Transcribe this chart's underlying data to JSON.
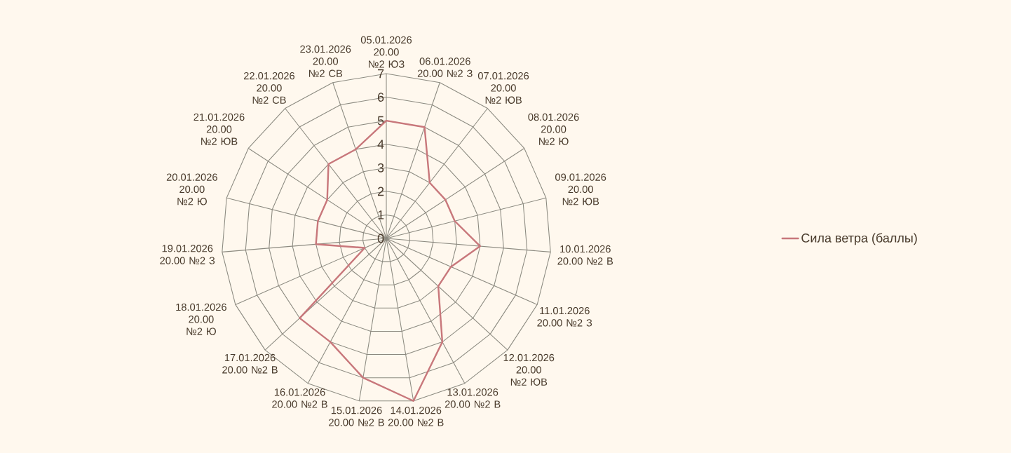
{
  "chart_data": {
    "type": "radar",
    "categories": [
      "05.01.2026 20.00 №2 ЮЗ",
      "06.01.2026 20.00 №2 З",
      "07.01.2026 20.00 №2 ЮВ",
      "08.01.2026 20.00 №2 Ю",
      "09.01.2026 20.00 №2 ЮВ",
      "10.01.2026 20.00 №2 В",
      "11.01.2026 20.00 №2 З",
      "12.01.2026 20.00 №2 ЮВ",
      "13.01.2026 20.00 №2 В",
      "14.01.2026 20.00 №2 В",
      "15.01.2026 20.00 №2 В",
      "16.01.2026 20.00 №2 В",
      "17.01.2026 20.00 №2 В",
      "18.01.2026 20.00 №2 Ю",
      "19.01.2026 20.00 №2 З",
      "20.01.2026 20.00 №2 Ю",
      "21.01.2026 20.00 №2 ЮВ",
      "22.01.2026 20.00 №2 СВ",
      "23.01.2026 20.00 №2 СВ"
    ],
    "series": [
      {
        "name": "Сила ветра (баллы)",
        "color": "#c8777b",
        "values": [
          5,
          5,
          3,
          3,
          3,
          4,
          3,
          3,
          5,
          7,
          6,
          5,
          5,
          1,
          3,
          3,
          3,
          4,
          4
        ]
      }
    ],
    "ylim": [
      0,
      7
    ],
    "yticks": [
      0,
      1,
      2,
      3,
      4,
      5,
      6,
      7
    ],
    "grid": true,
    "legend": "right"
  }
}
